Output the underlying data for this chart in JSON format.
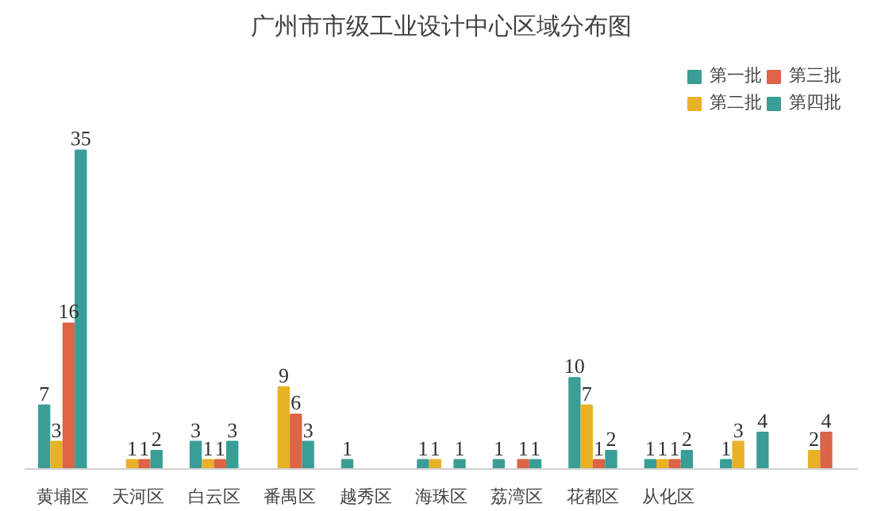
{
  "chart_data": {
    "type": "bar",
    "title": "广州市市级工业设计中心区域分布图",
    "categories": [
      "黄埔区",
      "天河区",
      "白云区",
      "番禺区",
      "越秀区",
      "海珠区",
      "荔湾区",
      "花都区",
      "从化区",
      null,
      null
    ],
    "series": [
      {
        "name": "第一批",
        "color": "#3a9e96",
        "values": [
          7,
          null,
          3,
          null,
          1,
          1,
          1,
          10,
          1,
          1,
          null
        ]
      },
      {
        "name": "第二批",
        "color": "#e8b127",
        "values": [
          3,
          1,
          1,
          9,
          null,
          1,
          null,
          7,
          1,
          3,
          2
        ]
      },
      {
        "name": "第三批",
        "color": "#dc6447",
        "values": [
          16,
          1,
          1,
          6,
          null,
          null,
          1,
          1,
          1,
          null,
          4
        ]
      },
      {
        "name": "第四批",
        "color": "#3a9e96",
        "values": [
          35,
          2,
          3,
          3,
          null,
          1,
          1,
          2,
          2,
          4,
          null
        ]
      }
    ],
    "data_labels": true,
    "legend": "top right",
    "grid": false
  }
}
